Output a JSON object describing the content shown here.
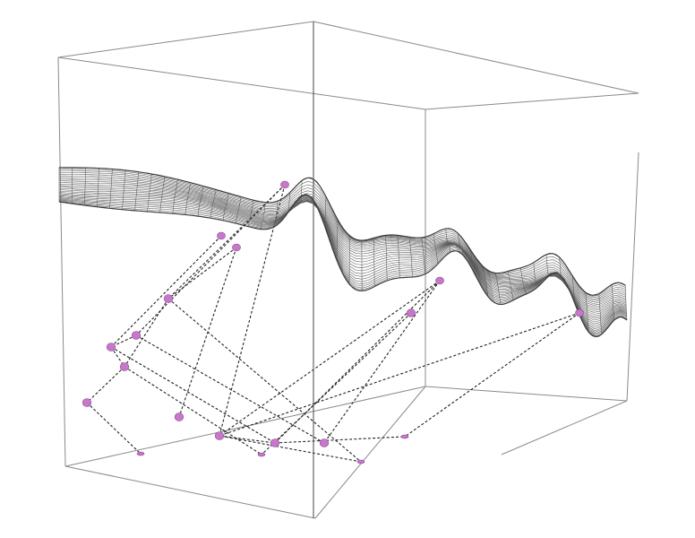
{
  "figure": {
    "type": "3d-wireframe-surface-with-point-network",
    "colors": {
      "background": "#ffffff",
      "box_edges": "#8a8a8a",
      "surface_mesh": "#5a5a5a",
      "surface_outline": "#3a3a3a",
      "dashed_links": "#222222",
      "nodes": "#c678c9"
    },
    "surface_points_count": 5,
    "floor_points_count": 14,
    "links_count": 24
  }
}
